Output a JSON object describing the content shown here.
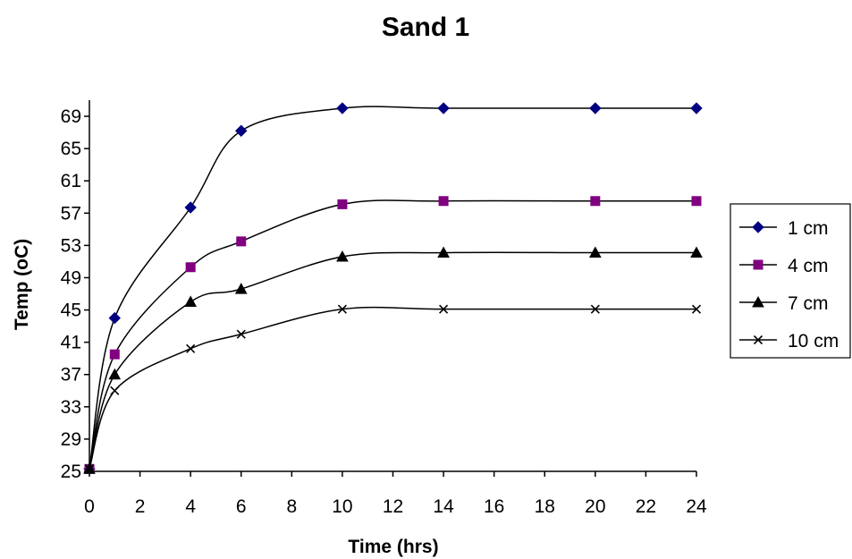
{
  "chart_data": {
    "type": "line",
    "title": "Sand 1",
    "xlabel": "Time (hrs)",
    "ylabel": "Temp (oC)",
    "xlim": [
      0,
      24
    ],
    "ylim": [
      25,
      71
    ],
    "x_ticks": [
      0,
      2,
      4,
      6,
      8,
      10,
      12,
      14,
      16,
      18,
      20,
      22,
      24
    ],
    "y_ticks": [
      25,
      29,
      33,
      37,
      41,
      45,
      49,
      53,
      57,
      61,
      65,
      69
    ],
    "grid": false,
    "legend_position": "right",
    "x": [
      0,
      1,
      4,
      6,
      10,
      14,
      20,
      24
    ],
    "series": [
      {
        "name": "1 cm",
        "marker": "diamond",
        "color": "#000080",
        "values": [
          25.3,
          44.0,
          57.7,
          67.2,
          70.0,
          70.0,
          70.0,
          70.0
        ]
      },
      {
        "name": "4 cm",
        "marker": "square",
        "color": "#800080",
        "values": [
          25.3,
          39.5,
          50.3,
          53.5,
          58.1,
          58.5,
          58.5,
          58.5
        ]
      },
      {
        "name": "7 cm",
        "marker": "triangle",
        "color": "#000000",
        "values": [
          25.3,
          37.0,
          46.0,
          47.6,
          51.6,
          52.1,
          52.1,
          52.1
        ]
      },
      {
        "name": "10 cm",
        "marker": "x",
        "color": "#000000",
        "values": [
          25.3,
          35.0,
          40.2,
          42.0,
          45.1,
          45.1,
          45.1,
          45.1
        ]
      }
    ]
  }
}
